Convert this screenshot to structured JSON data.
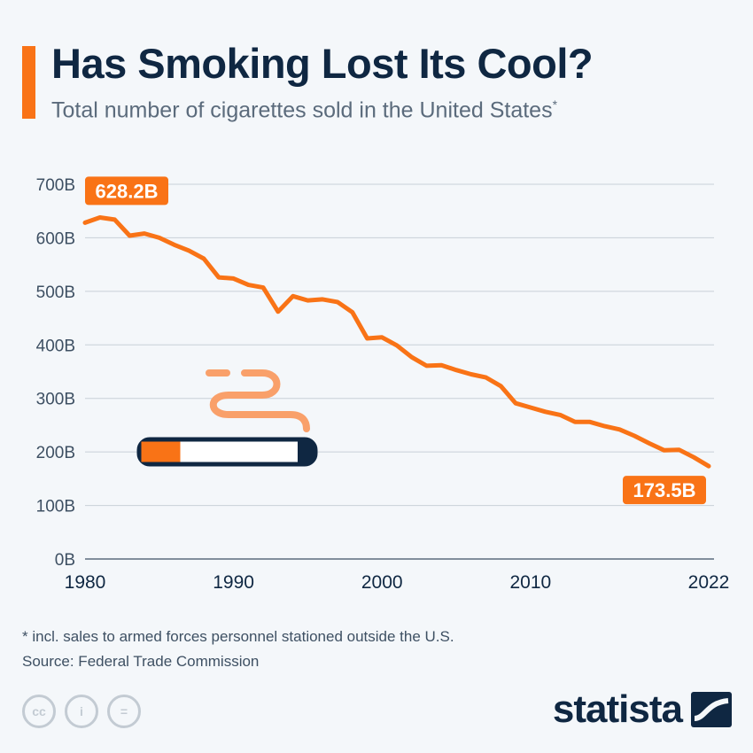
{
  "header": {
    "title": "Has Smoking Lost Its Cool?",
    "subtitle": "Total number of cigarettes sold in the United States",
    "subtitle_marker": "*"
  },
  "colors": {
    "accent": "#f97316",
    "navy": "#0f2742",
    "smoke": "#f9a06a",
    "grid": "#c8d0d8"
  },
  "chart_data": {
    "type": "line",
    "ylim": [
      0,
      700
    ],
    "xlim": [
      1980,
      2022
    ],
    "y_ticks": [
      0,
      100,
      200,
      300,
      400,
      500,
      600,
      700
    ],
    "y_tick_labels": [
      "0B",
      "100B",
      "200B",
      "300B",
      "400B",
      "500B",
      "600B",
      "700B"
    ],
    "x_ticks": [
      1980,
      1990,
      2000,
      2010,
      2022
    ],
    "x_tick_labels": [
      "1980",
      "1990",
      "2000",
      "2010",
      "2022"
    ],
    "grid": true,
    "series": [
      {
        "x": [
          1980,
          1981,
          1982,
          1983,
          1984,
          1985,
          1986,
          1987,
          1988,
          1989,
          1990,
          1991,
          1992,
          1993,
          1994,
          1995,
          1996,
          1997,
          1998,
          1999,
          2000,
          2001,
          2002,
          2003,
          2004,
          2005,
          2006,
          2007,
          2008,
          2009,
          2010,
          2011,
          2012,
          2013,
          2014,
          2015,
          2016,
          2017,
          2018,
          2019,
          2020,
          2021,
          2022
        ],
        "values": [
          628.2,
          638,
          634,
          604,
          608,
          600,
          587,
          576,
          561,
          526,
          524,
          512,
          507,
          462,
          491,
          483,
          485,
          480,
          461,
          412,
          414,
          399,
          377,
          361,
          362,
          353,
          345,
          339,
          323,
          291,
          283,
          275,
          269,
          256,
          256,
          248,
          242,
          230,
          216,
          203,
          204,
          190,
          173.5
        ]
      }
    ],
    "annotations": [
      {
        "x": 1980,
        "label": "628.2B"
      },
      {
        "x": 2022,
        "label": "173.5B"
      }
    ]
  },
  "footer": {
    "footnote": "* incl. sales to armed forces personnel stationed outside the U.S.",
    "source": "Source: Federal Trade Commission",
    "license_icons": [
      "cc-icon",
      "by-icon",
      "nd-icon"
    ],
    "license_icon_glyphs": [
      "cc",
      "i",
      "="
    ],
    "brand": "statista"
  }
}
